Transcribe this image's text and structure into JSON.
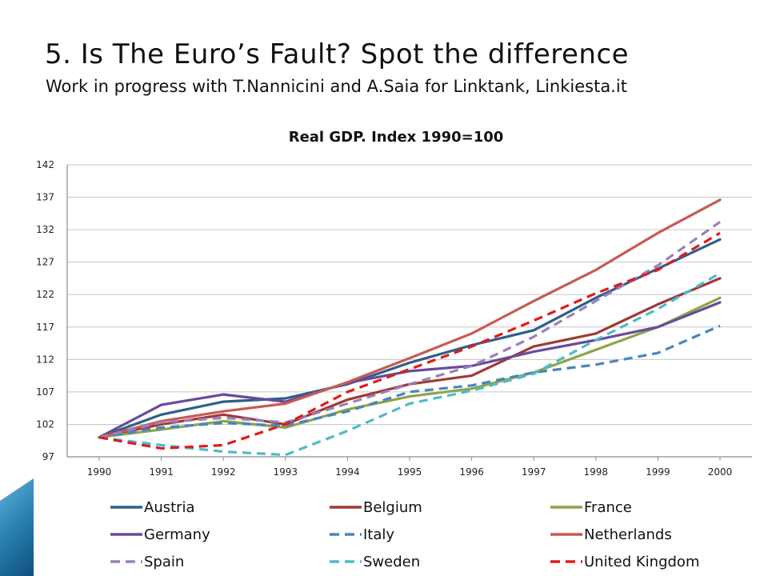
{
  "slide": {
    "title": "5. Is The Euro’s Fault? Spot the difference",
    "subtitle": "Work in progress with T.Nannicini and A.Saia for Linktank, Linkiesta.it"
  },
  "chart_data": {
    "type": "line",
    "title": "Real GDP. Index 1990=100",
    "xlabel": "",
    "ylabel": "",
    "x": [
      "1990",
      "1991",
      "1992",
      "1993",
      "1994",
      "1995",
      "1996",
      "1997",
      "1998",
      "1999",
      "2000"
    ],
    "ylim": [
      97,
      142
    ],
    "yticks": [
      97,
      102,
      107,
      112,
      117,
      122,
      127,
      132,
      137,
      142
    ],
    "grid": true,
    "legend_position": "bottom",
    "series": [
      {
        "name": "Austria",
        "color": "#2e5f8a",
        "dash": "solid",
        "values": [
          100,
          103.5,
          105.5,
          106,
          108.2,
          111.5,
          114.2,
          116.5,
          121.5,
          126,
          130.5
        ]
      },
      {
        "name": "Belgium",
        "color": "#9e3a36",
        "dash": "solid",
        "values": [
          100,
          102,
          103.5,
          102,
          105.8,
          108.2,
          109.5,
          114,
          116,
          120.5,
          124.5
        ]
      },
      {
        "name": "France",
        "color": "#8aa645",
        "dash": "solid",
        "values": [
          100,
          101.2,
          102.5,
          101.5,
          104.3,
          106.3,
          107.5,
          110,
          113.5,
          117,
          121.5
        ]
      },
      {
        "name": "Germany",
        "color": "#6a4a9a",
        "dash": "solid",
        "values": [
          100,
          105,
          106.6,
          105.5,
          108.4,
          110.2,
          111,
          113.2,
          115,
          117,
          120.8
        ]
      },
      {
        "name": "Italy",
        "color": "#4a85c0",
        "dash": "dashed",
        "values": [
          100,
          101.5,
          102.2,
          101.8,
          104,
          107,
          108,
          110,
          111.2,
          113,
          117.2
        ]
      },
      {
        "name": "Netherlands",
        "color": "#c85a55",
        "dash": "solid",
        "values": [
          100,
          102.5,
          104,
          105.2,
          108.5,
          112.2,
          116,
          121,
          125.8,
          131.5,
          136.6
        ]
      },
      {
        "name": "Spain",
        "color": "#9a80bb",
        "dash": "dashed",
        "values": [
          100,
          102.3,
          103,
          102.3,
          105.2,
          108.2,
          111,
          115.5,
          121,
          126.5,
          133.2
        ]
      },
      {
        "name": "Sweden",
        "color": "#4cbcc8",
        "dash": "dashed",
        "values": [
          100,
          98.8,
          97.8,
          97.3,
          101,
          105.2,
          107.2,
          109.8,
          115,
          119.8,
          125.3
        ]
      },
      {
        "name": "United Kingdom",
        "color": "#e01b1b",
        "dash": "dashed",
        "values": [
          100,
          98.3,
          98.8,
          102,
          107,
          110.5,
          114,
          118,
          122.2,
          125.8,
          131.5
        ]
      }
    ]
  }
}
